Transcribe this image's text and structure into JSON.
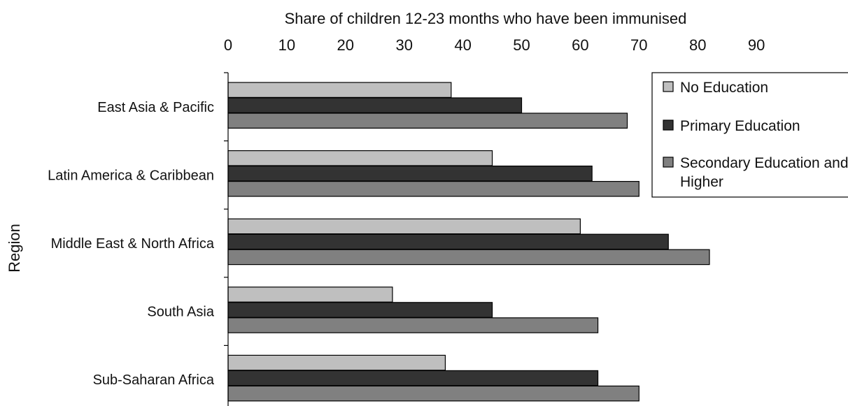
{
  "chart_data": {
    "type": "bar",
    "orientation": "horizontal",
    "xlabel": "Share of children 12-23 months who have been immunised",
    "ylabel": "Region",
    "xlim": [
      0,
      90
    ],
    "xticks": [
      0,
      10,
      20,
      30,
      40,
      50,
      60,
      70,
      80,
      90
    ],
    "x_axis_position": "top",
    "grid": false,
    "legend_position": "top-right",
    "categories": [
      "East Asia & Pacific",
      "Latin America & Caribbean",
      "Middle East & North Africa",
      "South Asia",
      "Sub-Saharan Africa"
    ],
    "series": [
      {
        "name": "No Education",
        "color": "#bfbfbf",
        "values": [
          38,
          45,
          60,
          28,
          37
        ]
      },
      {
        "name": "Primary Education",
        "color": "#333333",
        "values": [
          50,
          62,
          75,
          45,
          63
        ]
      },
      {
        "name": "Secondary Education and Higher",
        "color": "#808080",
        "values": [
          68,
          70,
          82,
          63,
          70
        ]
      }
    ],
    "legend_lines": [
      [
        "No Education"
      ],
      [
        "Primary Education"
      ],
      [
        "Secondary Education and",
        "Higher"
      ]
    ]
  }
}
